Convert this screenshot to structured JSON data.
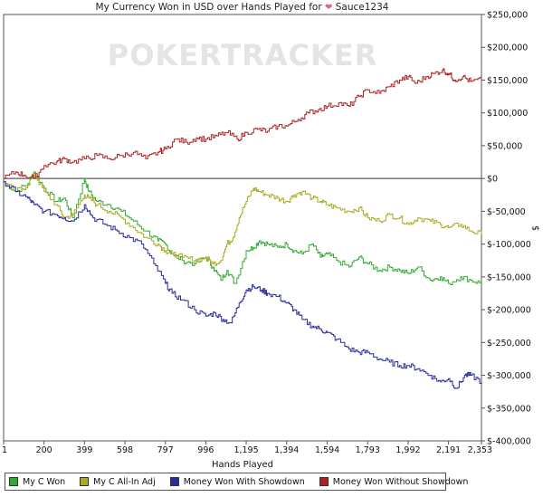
{
  "chart_data": {
    "type": "line",
    "title_prefix": "My Currency Won in USD over Hands Played for",
    "player_name": "Sauce1234",
    "watermark": "POKERTRACKER",
    "xlabel": "Hands Played",
    "ylabel": "$",
    "xlim": [
      1,
      2353
    ],
    "ylim": [
      -400000,
      250000
    ],
    "x_ticks": [
      1,
      200,
      399,
      598,
      797,
      996,
      1195,
      1394,
      1594,
      1793,
      1992,
      2191,
      2353
    ],
    "x_tick_labels": [
      "1",
      "200",
      "399",
      "598",
      "797",
      "996",
      "1,195",
      "1,394",
      "1,594",
      "1,793",
      "1,992",
      "2,191",
      "2,353"
    ],
    "y_ticks": [
      250000,
      200000,
      150000,
      100000,
      50000,
      0,
      -50000,
      -100000,
      -150000,
      -200000,
      -250000,
      -300000,
      -350000,
      -400000
    ],
    "y_tick_labels": [
      "$250,000",
      "$200,000",
      "$150,000",
      "$100,000",
      "$50,000",
      "$0",
      "$-50,000",
      "$-100,000",
      "$-150,000",
      "$-200,000",
      "$-250,000",
      "$-300,000",
      "$-350,000",
      "$-400,000"
    ],
    "legend_position": "bottom",
    "grid": false,
    "series": [
      {
        "name": "My C Won",
        "color": "#33aa33",
        "x": [
          1,
          60,
          120,
          150,
          200,
          260,
          300,
          340,
          399,
          420,
          460,
          520,
          580,
          640,
          700,
          760,
          797,
          830,
          880,
          940,
          996,
          1030,
          1070,
          1100,
          1140,
          1195,
          1230,
          1260,
          1300,
          1350,
          1394,
          1430,
          1470,
          1520,
          1560,
          1594,
          1640,
          1700,
          1750,
          1793,
          1850,
          1900,
          1950,
          1992,
          2040,
          2100,
          2150,
          2191,
          2250,
          2300,
          2353
        ],
        "y": [
          -5000,
          -20000,
          -8000,
          10000,
          -15000,
          -35000,
          -30000,
          -60000,
          0,
          -20000,
          -35000,
          -40000,
          -50000,
          -65000,
          -80000,
          -95000,
          -100000,
          -115000,
          -125000,
          -130000,
          -120000,
          -135000,
          -155000,
          -140000,
          -160000,
          -110000,
          -105000,
          -95000,
          -100000,
          -105000,
          -100000,
          -110000,
          -115000,
          -100000,
          -120000,
          -115000,
          -125000,
          -135000,
          -120000,
          -130000,
          -140000,
          -135000,
          -140000,
          -145000,
          -135000,
          -155000,
          -150000,
          -160000,
          -150000,
          -155000,
          -160000
        ]
      },
      {
        "name": "My C All-In Adj",
        "color": "#aaaa22",
        "x": [
          1,
          60,
          120,
          150,
          200,
          260,
          300,
          340,
          399,
          420,
          460,
          520,
          580,
          640,
          700,
          760,
          797,
          830,
          880,
          940,
          996,
          1030,
          1070,
          1100,
          1130,
          1160,
          1195,
          1230,
          1260,
          1300,
          1350,
          1394,
          1430,
          1470,
          1520,
          1560,
          1594,
          1640,
          1700,
          1750,
          1793,
          1850,
          1900,
          1950,
          1992,
          2040,
          2100,
          2150,
          2191,
          2250,
          2300,
          2353
        ],
        "y": [
          -5000,
          -20000,
          -10000,
          8000,
          -20000,
          -40000,
          -60000,
          -55000,
          -25000,
          -30000,
          -40000,
          -50000,
          -60000,
          -75000,
          -90000,
          -100000,
          -110000,
          -115000,
          -120000,
          -125000,
          -120000,
          -130000,
          -125000,
          -100000,
          -90000,
          -60000,
          -35000,
          -15000,
          -20000,
          -25000,
          -30000,
          -35000,
          -25000,
          -20000,
          -30000,
          -35000,
          -40000,
          -45000,
          -50000,
          -45000,
          -60000,
          -65000,
          -55000,
          -60000,
          -70000,
          -60000,
          -65000,
          -70000,
          -75000,
          -70000,
          -80000,
          -85000
        ]
      },
      {
        "name": "Money Won With Showdown",
        "color": "#2a2a99",
        "x": [
          1,
          60,
          120,
          150,
          200,
          260,
          300,
          340,
          399,
          440,
          500,
          560,
          620,
          680,
          740,
          797,
          830,
          880,
          940,
          996,
          1040,
          1080,
          1120,
          1160,
          1195,
          1230,
          1270,
          1300,
          1350,
          1394,
          1430,
          1470,
          1520,
          1560,
          1594,
          1640,
          1700,
          1750,
          1793,
          1850,
          1900,
          1950,
          1992,
          2040,
          2100,
          2150,
          2191,
          2230,
          2270,
          2300,
          2353
        ],
        "y": [
          -5000,
          -20000,
          -30000,
          -40000,
          -50000,
          -55000,
          -60000,
          -65000,
          -40000,
          -60000,
          -70000,
          -80000,
          -90000,
          -100000,
          -130000,
          -160000,
          -175000,
          -185000,
          -200000,
          -210000,
          -205000,
          -215000,
          -220000,
          -190000,
          -170000,
          -165000,
          -170000,
          -175000,
          -180000,
          -190000,
          -200000,
          -215000,
          -225000,
          -230000,
          -235000,
          -245000,
          -260000,
          -265000,
          -265000,
          -275000,
          -280000,
          -285000,
          -285000,
          -290000,
          -300000,
          -310000,
          -305000,
          -320000,
          -300000,
          -300000,
          -310000
        ]
      },
      {
        "name": "Money Won Without Showdown",
        "color": "#aa2222",
        "x": [
          1,
          60,
          100,
          150,
          200,
          260,
          300,
          340,
          399,
          460,
          520,
          580,
          640,
          700,
          760,
          797,
          850,
          900,
          950,
          996,
          1050,
          1100,
          1150,
          1195,
          1250,
          1300,
          1350,
          1394,
          1450,
          1500,
          1550,
          1594,
          1650,
          1700,
          1750,
          1793,
          1850,
          1900,
          1950,
          1992,
          2030,
          2080,
          2120,
          2160,
          2191,
          2220,
          2260,
          2300,
          2353
        ],
        "y": [
          0,
          10000,
          5000,
          0,
          20000,
          25000,
          30000,
          25000,
          30000,
          35000,
          30000,
          35000,
          40000,
          30000,
          40000,
          45000,
          60000,
          55000,
          62000,
          60000,
          65000,
          70000,
          60000,
          70000,
          75000,
          72000,
          80000,
          80000,
          90000,
          100000,
          105000,
          110000,
          115000,
          110000,
          125000,
          135000,
          130000,
          140000,
          150000,
          155000,
          145000,
          155000,
          160000,
          165000,
          160000,
          150000,
          155000,
          148000,
          150000
        ]
      }
    ]
  }
}
